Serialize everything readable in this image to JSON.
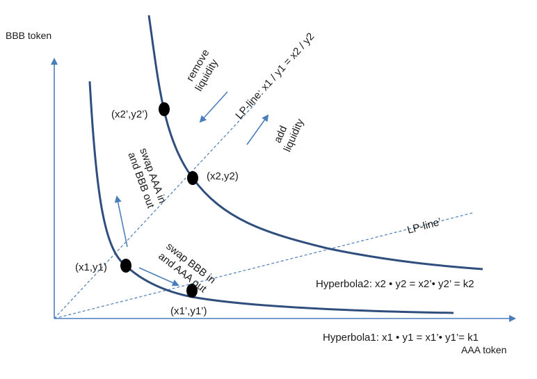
{
  "axes": {
    "y_label": "BBB token",
    "x_label": "AAA token"
  },
  "lines": {
    "lp_line_label": "LP-line: x1 / y1 = x2 / y2",
    "lp_line_prime_label": "LP-line’"
  },
  "points": {
    "p_x1y1": "(x1,y1)",
    "p_x2y2": "(x2,y2)",
    "p_x2py2p": "(x2’,y2’)",
    "p_x1py1p": "(x1’,y1’)"
  },
  "annotations": {
    "remove_liquidity": [
      "remove",
      "liquidity"
    ],
    "add_liquidity": [
      "add",
      "liquidity"
    ],
    "swap_aaa_in": [
      "swap AAA in",
      "and BBB out"
    ],
    "swap_bbb_in": [
      "swap BBB in",
      "and AAA out"
    ]
  },
  "equations": {
    "hyperbola2": "Hyperbola2: x2 • y2 = x2’• y2’ = k2",
    "hyperbola1": "Hyperbola1: x1 • y1 = x1’• y1’= k1"
  },
  "colors": {
    "curve": "#2f4e7e",
    "axis": "#4a7ebb",
    "dashed": "#4a7ebb",
    "point": "#000000"
  }
}
